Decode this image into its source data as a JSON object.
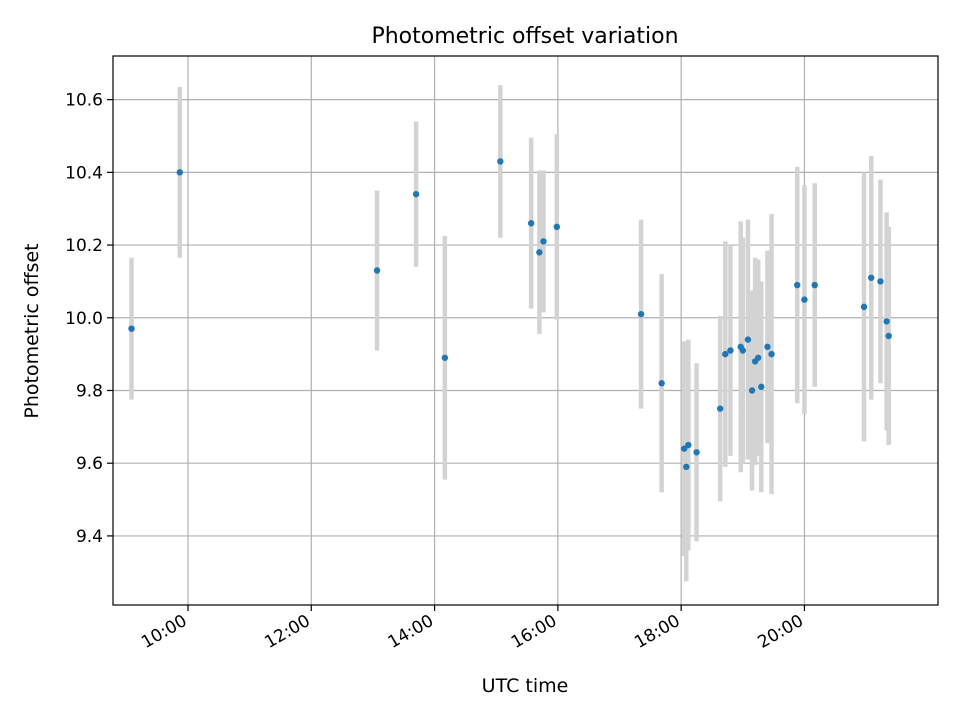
{
  "chart_data": {
    "type": "scatter",
    "title": "Photometric offset variation",
    "xlabel": "UTC time",
    "ylabel": "Photometric offset",
    "x_axis": {
      "kind": "time",
      "range": [
        "08:47",
        "22:10"
      ],
      "ticks": [
        "10:00",
        "12:00",
        "14:00",
        "16:00",
        "18:00",
        "20:00"
      ]
    },
    "y_axis": {
      "range": [
        9.21,
        10.72
      ],
      "ticks": [
        "9.4",
        "9.6",
        "9.8",
        "10.0",
        "10.2",
        "10.4",
        "10.6"
      ]
    },
    "grid": true,
    "colors": {
      "marker": "#1f77b4",
      "errorbar": "#d3d3d3",
      "grid": "#b0b0b0"
    },
    "points": [
      {
        "x": "09:05",
        "y": 9.97,
        "err": 0.195
      },
      {
        "x": "09:52",
        "y": 10.4,
        "err": 0.235
      },
      {
        "x": "13:04",
        "y": 10.13,
        "err": 0.22
      },
      {
        "x": "13:42",
        "y": 10.34,
        "err": 0.2
      },
      {
        "x": "14:10",
        "y": 9.89,
        "err": 0.335
      },
      {
        "x": "15:04",
        "y": 10.43,
        "err": 0.21
      },
      {
        "x": "15:34",
        "y": 10.26,
        "err": 0.235
      },
      {
        "x": "15:42",
        "y": 10.18,
        "err": 0.225
      },
      {
        "x": "15:46",
        "y": 10.21,
        "err": 0.195
      },
      {
        "x": "15:59",
        "y": 10.25,
        "err": 0.255
      },
      {
        "x": "17:21",
        "y": 10.01,
        "err": 0.26
      },
      {
        "x": "17:41",
        "y": 9.82,
        "err": 0.3
      },
      {
        "x": "18:03",
        "y": 9.64,
        "err": 0.295
      },
      {
        "x": "18:05",
        "y": 9.59,
        "err": 0.315
      },
      {
        "x": "18:07",
        "y": 9.65,
        "err": 0.29
      },
      {
        "x": "18:15",
        "y": 9.63,
        "err": 0.245
      },
      {
        "x": "18:38",
        "y": 9.75,
        "err": 0.255
      },
      {
        "x": "18:43",
        "y": 9.9,
        "err": 0.31
      },
      {
        "x": "18:48",
        "y": 9.91,
        "err": 0.29
      },
      {
        "x": "18:58",
        "y": 9.92,
        "err": 0.345
      },
      {
        "x": "19:00",
        "y": 9.91,
        "err": 0.31
      },
      {
        "x": "19:05",
        "y": 9.94,
        "err": 0.33
      },
      {
        "x": "19:09",
        "y": 9.8,
        "err": 0.275
      },
      {
        "x": "19:12",
        "y": 9.88,
        "err": 0.285
      },
      {
        "x": "19:15",
        "y": 9.89,
        "err": 0.27
      },
      {
        "x": "19:18",
        "y": 9.81,
        "err": 0.29
      },
      {
        "x": "19:24",
        "y": 9.92,
        "err": 0.265
      },
      {
        "x": "19:28",
        "y": 9.9,
        "err": 0.385
      },
      {
        "x": "19:53",
        "y": 10.09,
        "err": 0.325
      },
      {
        "x": "20:00",
        "y": 10.05,
        "err": 0.315
      },
      {
        "x": "20:10",
        "y": 10.09,
        "err": 0.28
      },
      {
        "x": "20:58",
        "y": 10.03,
        "err": 0.37
      },
      {
        "x": "21:05",
        "y": 10.11,
        "err": 0.335
      },
      {
        "x": "21:14",
        "y": 10.1,
        "err": 0.28
      },
      {
        "x": "21:20",
        "y": 9.99,
        "err": 0.3
      },
      {
        "x": "21:22",
        "y": 9.95,
        "err": 0.3
      }
    ]
  }
}
